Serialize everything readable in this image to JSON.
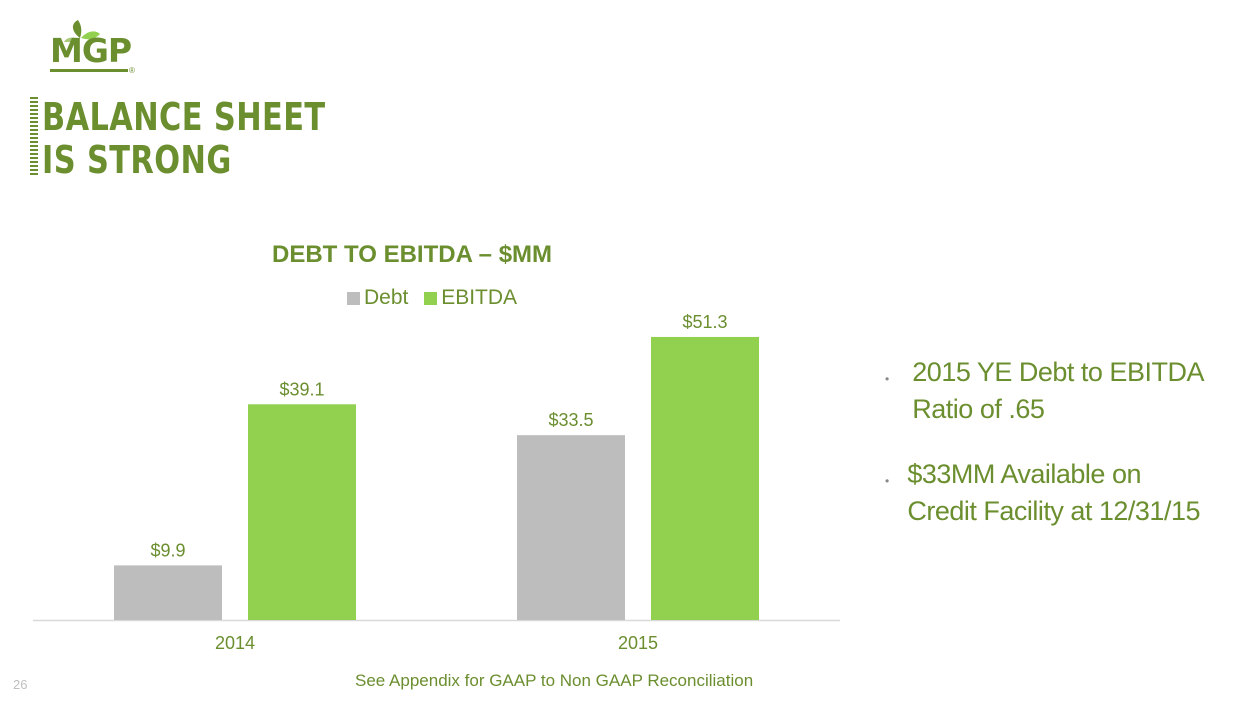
{
  "logo": {
    "text": "MGP",
    "registered": "®"
  },
  "title": {
    "line1": "BALANCE SHEET",
    "line2": "IS STRONG"
  },
  "chart_data": {
    "type": "bar",
    "title": "DEBT TO EBITDA – $MM",
    "categories": [
      "2014",
      "2015"
    ],
    "series": [
      {
        "name": "Debt",
        "color": "#bdbdbd",
        "values": [
          9.9,
          33.5
        ],
        "labels": [
          "$9.9",
          "$33.5"
        ]
      },
      {
        "name": "EBITDA",
        "color": "#92d050",
        "values": [
          39.1,
          51.3
        ],
        "labels": [
          "$39.1",
          "$51.3"
        ]
      }
    ],
    "ylim": [
      0,
      58
    ],
    "grid": false,
    "legend": "top"
  },
  "bullets": [
    {
      "dot": "•",
      "text": "2015 YE Debt to EBITDA Ratio of .65"
    },
    {
      "dot": "•",
      "text": "$33MM Available on Credit Facility at 12/31/15"
    }
  ],
  "footnote": "See Appendix for GAAP to Non GAAP Reconciliation",
  "page_number": "26",
  "colors": {
    "brand_green": "#6b8e2f",
    "debt": "#bdbdbd",
    "ebitda": "#92d050",
    "axis": "#d9d9d9"
  }
}
